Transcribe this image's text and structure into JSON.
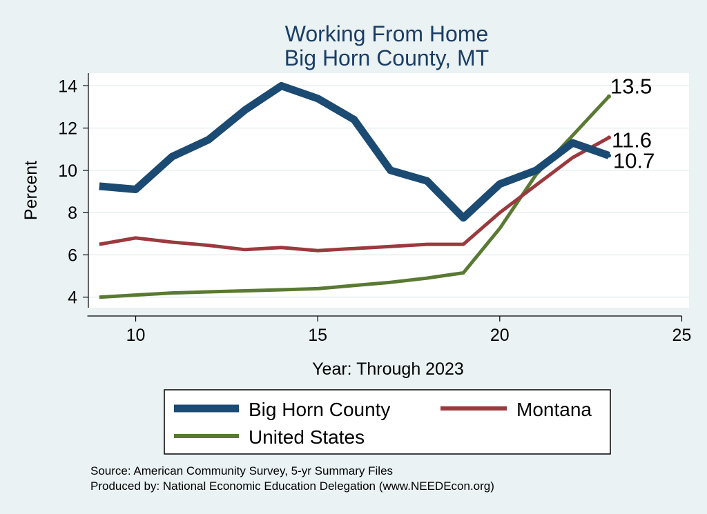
{
  "chart_data": {
    "type": "line",
    "title": [
      "Working From Home",
      "Big Horn County, MT"
    ],
    "xlabel": "Year: Through 2023",
    "ylabel": "Percent",
    "xlim": [
      8.7,
      25.2
    ],
    "ylim": [
      3.5,
      14.6
    ],
    "xticks": [
      10,
      15,
      20,
      25
    ],
    "yticks": [
      4,
      6,
      8,
      10,
      12,
      14
    ],
    "grid": true,
    "legend_position": "bottom",
    "x": [
      9,
      10,
      11,
      12,
      13,
      14,
      15,
      16,
      17,
      18,
      19,
      20,
      21,
      22,
      23
    ],
    "series": [
      {
        "name": "Big Horn County",
        "color": "#1b4a72",
        "values": [
          9.25,
          9.1,
          10.65,
          11.45,
          12.85,
          14.0,
          13.4,
          12.4,
          10.0,
          9.5,
          7.75,
          9.35,
          10.0,
          11.3,
          10.7
        ],
        "end_label": "10.7"
      },
      {
        "name": "Montana",
        "color": "#9b3a3e",
        "values": [
          6.5,
          6.8,
          6.6,
          6.45,
          6.25,
          6.35,
          6.2,
          6.3,
          6.4,
          6.5,
          6.5,
          8.0,
          9.3,
          10.6,
          11.55
        ],
        "end_label": "11.6"
      },
      {
        "name": "United States",
        "color": "#5a7a33",
        "values": [
          4.0,
          4.1,
          4.2,
          4.25,
          4.3,
          4.35,
          4.4,
          4.55,
          4.7,
          4.9,
          5.15,
          7.25,
          9.8,
          11.65,
          13.5
        ],
        "end_label": "13.5"
      }
    ]
  },
  "source_lines": [
    "Source: American Community Survey, 5-yr Summary Files",
    "Produced by: National Economic Education Delegation (www.NEEDEcon.org)"
  ]
}
